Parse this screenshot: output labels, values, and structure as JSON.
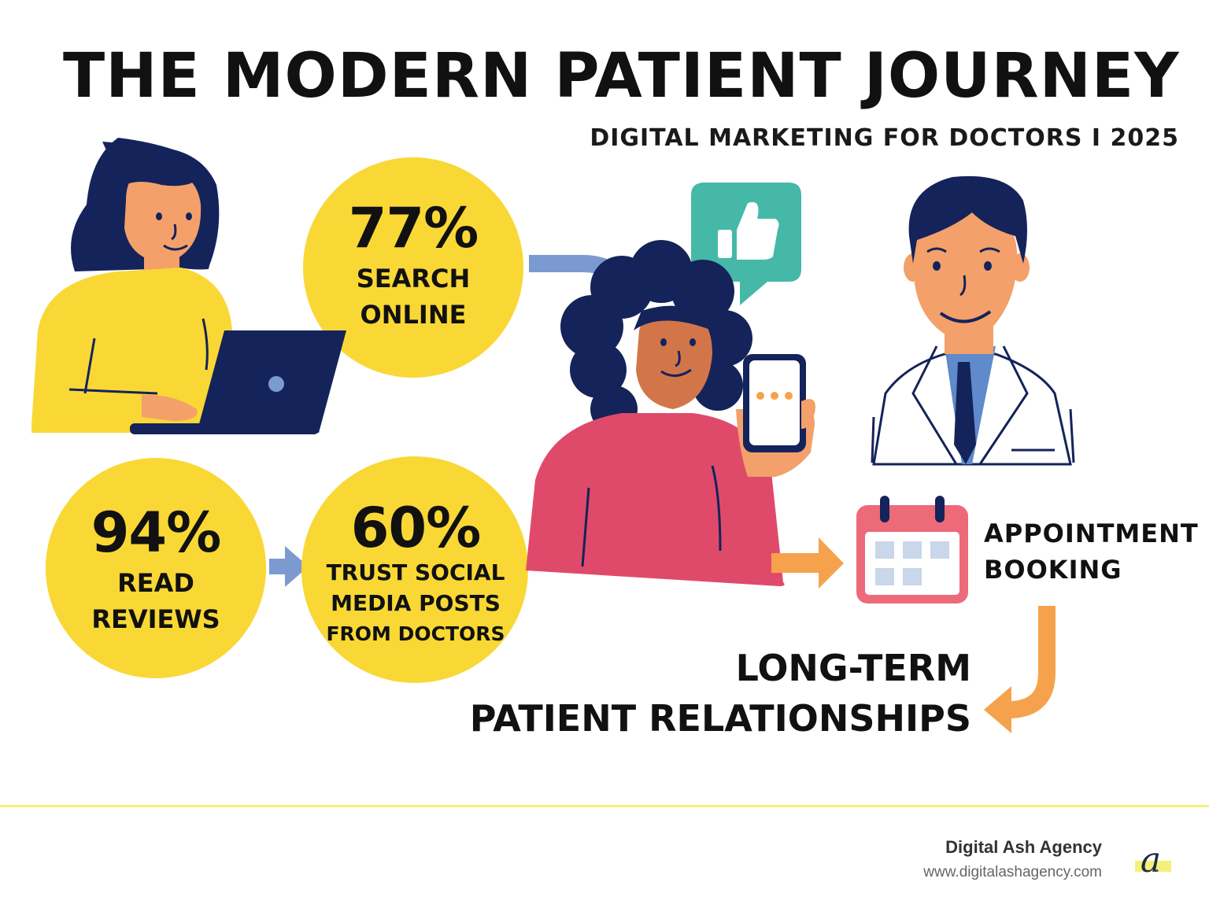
{
  "header": {
    "title": "THE MODERN PATIENT JOURNEY",
    "subtitle": "DIGITAL MARKETING FOR DOCTORS I 2025"
  },
  "stats": [
    {
      "value": "77%",
      "label_lines": [
        "SEARCH",
        "ONLINE"
      ]
    },
    {
      "value": "94%",
      "label_lines": [
        "READ",
        "REVIEWS"
      ]
    },
    {
      "value": "60%",
      "label_lines": [
        "TRUST SOCIAL",
        "MEDIA POSTS",
        "FROM DOCTORS"
      ]
    }
  ],
  "steps": {
    "appointment_lines": [
      "APPOINTMENT",
      "BOOKING"
    ],
    "outcome_lines": [
      "LONG-TERM",
      "PATIENT RELATIONSHIPS"
    ]
  },
  "icons": [
    "laptop-user-illustration",
    "thumbs-up-icon",
    "smartphone-icon",
    "doctor-illustration",
    "calendar-icon",
    "arrow-icon"
  ],
  "colors": {
    "yellow": "#f9d835",
    "navy": "#14235a",
    "pink": "#e04a6a",
    "teal": "#46b8a8",
    "orange": "#f6a24d",
    "arrow_blue": "#7b9bd0",
    "skin_light": "#f3a06a",
    "skin_dark": "#d2764a"
  },
  "footer": {
    "agency_name": "Digital Ash Agency",
    "website": "www.digitalashagency.com",
    "logo_letter": "a"
  }
}
